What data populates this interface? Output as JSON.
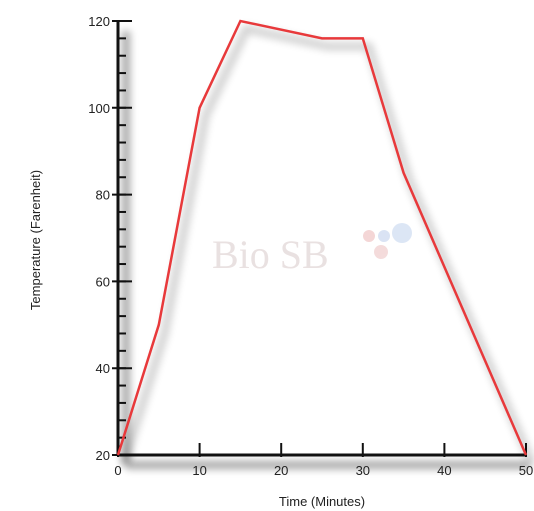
{
  "chart_data": {
    "type": "line",
    "xlabel": "Time (Minutes)",
    "ylabel": "Temperature (Farenheit)",
    "xlim": [
      0,
      50
    ],
    "ylim": [
      20,
      120
    ],
    "xticks": [
      0,
      10,
      20,
      30,
      40,
      50
    ],
    "yticks": [
      20,
      40,
      60,
      80,
      100,
      120
    ],
    "grid": false,
    "series": [
      {
        "color": "#e8393b",
        "x": [
          0,
          5,
          10,
          15,
          25,
          30,
          35,
          50
        ],
        "y": [
          20,
          50,
          100,
          120,
          116,
          116,
          85,
          20
        ]
      }
    ]
  },
  "watermark": {
    "text": "Bio SB",
    "color": "#e7dede"
  }
}
